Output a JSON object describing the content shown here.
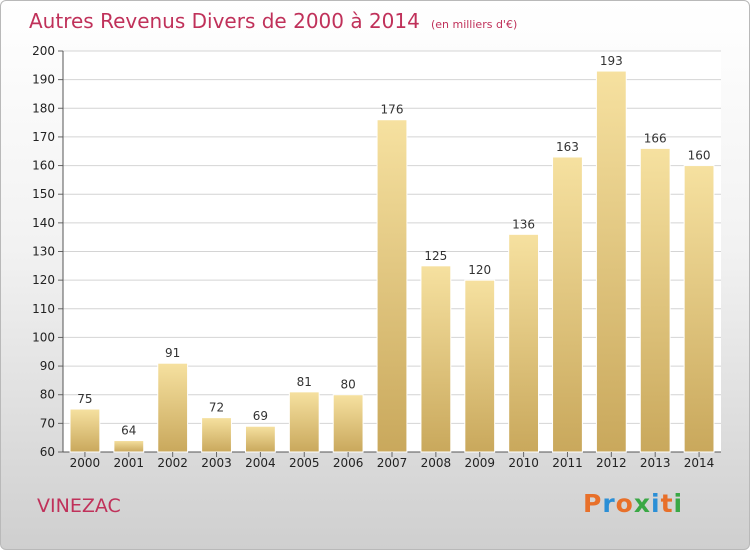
{
  "header": {
    "title": "Autres Revenus Divers de 2000 à 2014",
    "unit_note": "(en milliers d'€)"
  },
  "footer": {
    "place": "VINEZAC",
    "brand": "Proxiti"
  },
  "colors": {
    "title": "#c0315a",
    "bar_light": "#f6e1a0",
    "bar_dark": "#c9a85c",
    "grid": "#d4d4d4"
  },
  "chart_data": {
    "type": "bar",
    "title": "Autres Revenus Divers de 2000 à 2014",
    "subtitle": "(en milliers d'€)",
    "categories": [
      "2000",
      "2001",
      "2002",
      "2003",
      "2004",
      "2005",
      "2006",
      "2007",
      "2008",
      "2009",
      "2010",
      "2011",
      "2012",
      "2013",
      "2014"
    ],
    "values": [
      75,
      64,
      91,
      72,
      69,
      81,
      80,
      176,
      125,
      120,
      136,
      163,
      193,
      166,
      160
    ],
    "ylim": [
      60,
      200
    ],
    "yticks": [
      60,
      70,
      80,
      90,
      100,
      110,
      120,
      130,
      140,
      150,
      160,
      170,
      180,
      190,
      200
    ],
    "grid": true,
    "data_labels": true
  }
}
